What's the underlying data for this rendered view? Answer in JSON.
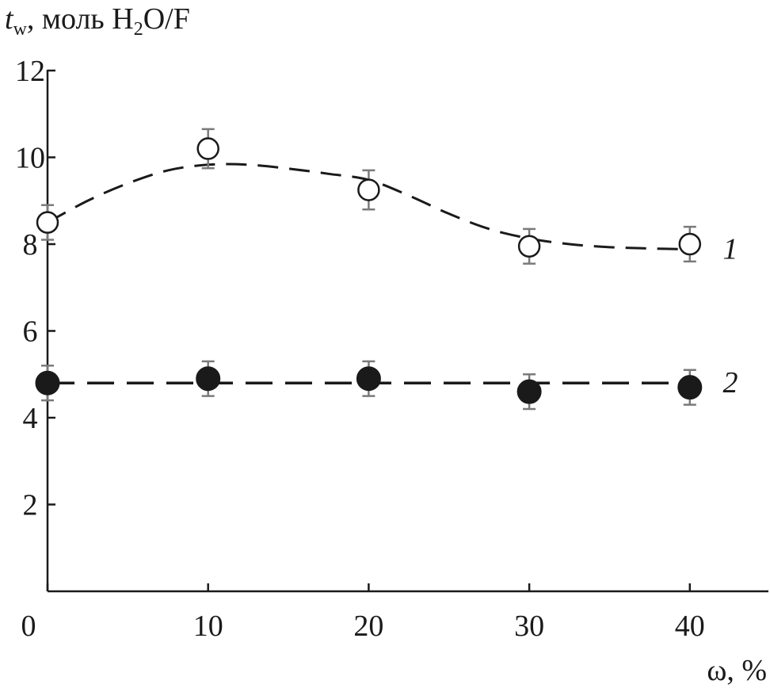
{
  "chart_data": {
    "type": "scatter",
    "title": "",
    "ylabel": {
      "symbol": "t",
      "subscript": "w",
      "units_pre": ", моль H",
      "units_sub": "2",
      "units_post": "O/F"
    },
    "xlabel": "ω, %",
    "xlim": [
      0,
      45
    ],
    "ylim": [
      0,
      12
    ],
    "x_ticks": [
      0,
      10,
      20,
      30,
      40
    ],
    "y_ticks": [
      2,
      4,
      6,
      8,
      10,
      12
    ],
    "x_tick_labels": [
      "0",
      "10",
      "20",
      "30",
      "40"
    ],
    "y_tick_labels": [
      "2",
      "4",
      "6",
      "8",
      "10",
      "12"
    ],
    "grid": false,
    "series": [
      {
        "name": "1",
        "marker": "open-circle",
        "fit": "smooth-dashed-curve",
        "x": [
          0,
          10,
          20,
          30,
          40
        ],
        "y": [
          8.5,
          10.2,
          9.25,
          7.95,
          8.0
        ],
        "error": [
          0.4,
          0.45,
          0.45,
          0.4,
          0.4
        ],
        "fit_curve": {
          "x": [
            0,
            2.5,
            5,
            7.5,
            10,
            12.5,
            15,
            17.5,
            20,
            22.5,
            25,
            27.5,
            30,
            32.5,
            35,
            37.5,
            40
          ],
          "y": [
            8.5,
            9.0,
            9.4,
            9.7,
            9.83,
            9.83,
            9.74,
            9.62,
            9.48,
            9.12,
            8.7,
            8.35,
            8.13,
            8.0,
            7.93,
            7.9,
            7.88
          ]
        }
      },
      {
        "name": "2",
        "marker": "filled-circle",
        "fit": "horizontal-dashed-line",
        "x": [
          0,
          10,
          20,
          30,
          40
        ],
        "y": [
          4.8,
          4.9,
          4.9,
          4.6,
          4.7
        ],
        "error": [
          0.4,
          0.4,
          0.4,
          0.4,
          0.4
        ],
        "fit_curve": {
          "x": [
            0,
            40
          ],
          "y": [
            4.8,
            4.8
          ]
        }
      }
    ],
    "colors": {
      "ink": "#1a1a1a",
      "errorbar": "#7a7a7a",
      "background": "#ffffff"
    }
  }
}
